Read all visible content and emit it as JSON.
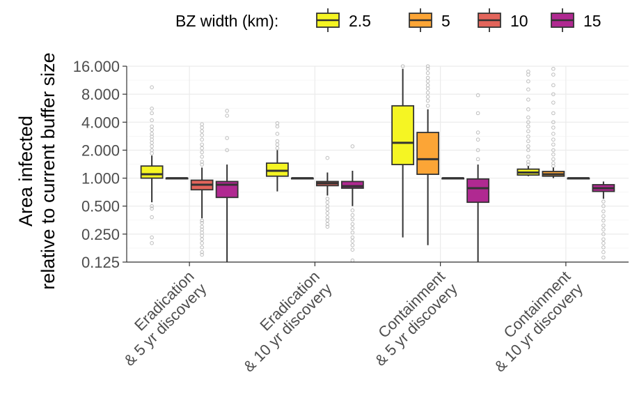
{
  "chart_data": {
    "type": "boxplot",
    "ylabel": [
      "Area infected",
      "relative to current buffer size"
    ],
    "yscale": "log2",
    "ylim": [
      0.125,
      16
    ],
    "yticks": [
      0.125,
      0.25,
      0.5,
      1,
      2,
      4,
      8,
      16
    ],
    "ytick_labels": [
      "0.125",
      "0.250",
      "0.500",
      "1.000",
      "2.000",
      "4.000",
      "8.000",
      "16.000"
    ],
    "grid": true,
    "legend": {
      "title": "BZ width (km):",
      "position": "top",
      "entries": [
        {
          "label": "2.5",
          "color": "#f5f523"
        },
        {
          "label": "5",
          "color": "#fca536"
        },
        {
          "label": "10",
          "color": "#e3655b"
        },
        {
          "label": "15",
          "color": "#b02991"
        }
      ]
    },
    "categories": [
      [
        "Eradication",
        "& 5 yr discovery"
      ],
      [
        "Eradication",
        "& 10 yr discovery"
      ],
      [
        "Containment",
        "& 5 yr discovery"
      ],
      [
        "Containment",
        "& 10 yr discovery"
      ]
    ],
    "series": [
      {
        "name": "2.5",
        "color": "#f5f523",
        "boxes": [
          {
            "q1": 1.0,
            "median": 1.1,
            "q3": 1.35,
            "whisker_low": 0.55,
            "whisker_high": 1.75,
            "outliers": [
              0.2,
              0.23,
              0.38,
              0.47,
              0.5,
              1.85,
              2.0,
              2.2,
              2.4,
              2.6,
              2.8,
              3.0,
              3.3,
              3.6,
              4.2,
              5.0,
              5.6,
              9.5
            ]
          },
          {
            "q1": 1.05,
            "median": 1.2,
            "q3": 1.45,
            "whisker_low": 0.72,
            "whisker_high": 2.0,
            "outliers": [
              2.1,
              2.3,
              2.5,
              3.0,
              3.6,
              3.9
            ]
          },
          {
            "q1": 1.4,
            "median": 2.4,
            "q3": 6.0,
            "whisker_low": 0.23,
            "whisker_high": 15.0,
            "outliers": [
              16.0
            ]
          },
          {
            "q1": 1.08,
            "median": 1.15,
            "q3": 1.25,
            "whisker_low": 1.05,
            "whisker_high": 1.35,
            "outliers": [
              1.4,
              1.5,
              1.7,
              2.0,
              2.2,
              2.5,
              2.8,
              3.2,
              3.6,
              4.0,
              4.5,
              5.5,
              7.0,
              9.0,
              11.0,
              13.0,
              14.0
            ]
          }
        ]
      },
      {
        "name": "5",
        "color": "#fca536",
        "boxes": [
          {
            "q1": 1.0,
            "median": 1.0,
            "q3": 1.0,
            "whisker_low": 1.0,
            "whisker_high": 1.0,
            "outliers": []
          },
          {
            "q1": 1.0,
            "median": 1.0,
            "q3": 1.0,
            "whisker_low": 1.0,
            "whisker_high": 1.0,
            "outliers": []
          },
          {
            "q1": 1.1,
            "median": 1.6,
            "q3": 3.1,
            "whisker_low": 0.19,
            "whisker_high": 5.5,
            "outliers": [
              6.0,
              6.8,
              7.5,
              8.3,
              9.2,
              10.0,
              11.0,
              12.0,
              13.5,
              15.0,
              16.0
            ]
          },
          {
            "q1": 1.05,
            "median": 1.1,
            "q3": 1.18,
            "whisker_low": 1.0,
            "whisker_high": 1.3,
            "outliers": [
              1.35,
              1.45,
              1.6,
              1.8,
              2.0,
              2.3,
              2.6,
              3.0,
              3.5,
              4.0,
              5.0,
              6.5,
              8.0,
              10.0,
              13.0,
              15.0
            ]
          }
        ]
      },
      {
        "name": "10",
        "color": "#e3655b",
        "boxes": [
          {
            "q1": 0.75,
            "median": 0.85,
            "q3": 0.95,
            "whisker_low": 0.37,
            "whisker_high": 1.3,
            "outliers": [
              0.15,
              0.16,
              0.18,
              0.2,
              0.22,
              0.24,
              0.26,
              0.28,
              0.3,
              0.33,
              0.35,
              1.4,
              1.5,
              1.7,
              1.9,
              2.1,
              2.3,
              2.6,
              2.9,
              3.2,
              3.5,
              3.8
            ]
          },
          {
            "q1": 0.83,
            "median": 0.88,
            "q3": 0.92,
            "whisker_low": 0.65,
            "whisker_high": 1.15,
            "outliers": [
              0.3,
              0.32,
              0.35,
              0.38,
              0.42,
              0.46,
              0.5,
              0.55,
              0.6,
              1.65
            ]
          },
          {
            "q1": 1.0,
            "median": 1.0,
            "q3": 1.0,
            "whisker_low": 1.0,
            "whisker_high": 1.0,
            "outliers": []
          },
          {
            "q1": 1.0,
            "median": 1.0,
            "q3": 1.0,
            "whisker_low": 1.0,
            "whisker_high": 1.0,
            "outliers": []
          }
        ]
      },
      {
        "name": "15",
        "color": "#b02991",
        "boxes": [
          {
            "q1": 0.62,
            "median": 0.85,
            "q3": 0.92,
            "whisker_low": 0.125,
            "whisker_high": 1.4,
            "outliers": [
              2.0,
              2.7,
              4.7,
              5.3
            ]
          },
          {
            "q1": 0.78,
            "median": 0.82,
            "q3": 0.92,
            "whisker_low": 0.5,
            "whisker_high": 1.2,
            "outliers": [
              0.13,
              0.17,
              0.19,
              0.21,
              0.23,
              0.26,
              0.29,
              0.32,
              0.36,
              0.4,
              0.45,
              2.2
            ]
          },
          {
            "q1": 0.55,
            "median": 0.78,
            "q3": 0.98,
            "whisker_low": 0.125,
            "whisker_high": 1.4,
            "outliers": [
              1.6,
              2.0,
              2.6,
              3.1,
              5.0,
              7.8
            ]
          },
          {
            "q1": 0.72,
            "median": 0.78,
            "q3": 0.85,
            "whisker_low": 0.6,
            "whisker_high": 0.92,
            "outliers": [
              0.14,
              0.16,
              0.18,
              0.2,
              0.22,
              0.25,
              0.28,
              0.31,
              0.35,
              0.39,
              0.44,
              0.5,
              0.56
            ]
          }
        ]
      }
    ]
  }
}
